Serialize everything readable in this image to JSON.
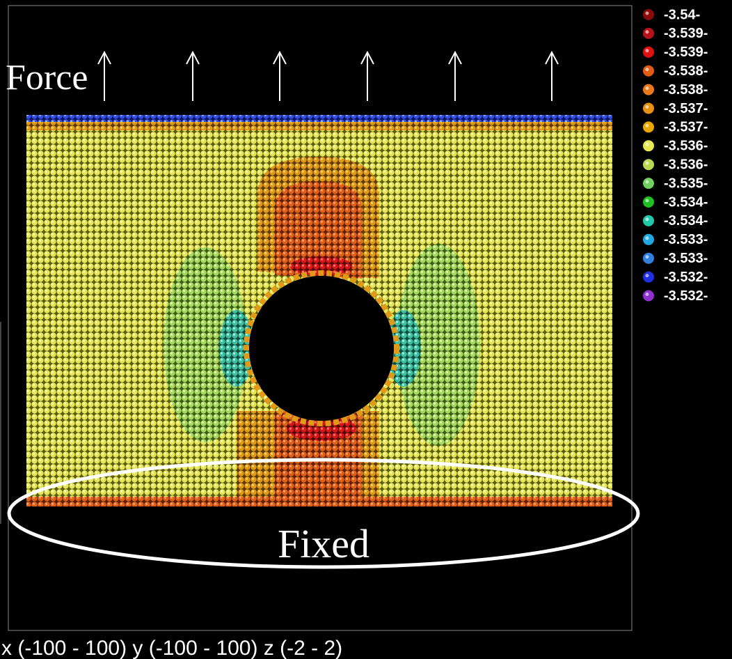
{
  "annotations": {
    "force": "Force",
    "fixed": "Fixed"
  },
  "legend": [
    {
      "label": "-3.54-",
      "color": "#8b0a0a"
    },
    {
      "label": "-3.539-",
      "color": "#b8101a"
    },
    {
      "label": "-3.539-",
      "color": "#e01010"
    },
    {
      "label": "-3.538-",
      "color": "#e05a14"
    },
    {
      "label": "-3.538-",
      "color": "#e87818"
    },
    {
      "label": "-3.537-",
      "color": "#e89010"
    },
    {
      "label": "-3.537-",
      "color": "#e8a800"
    },
    {
      "label": "-3.536-",
      "color": "#e8e850"
    },
    {
      "label": "-3.536-",
      "color": "#b8d850"
    },
    {
      "label": "-3.535-",
      "color": "#70d060"
    },
    {
      "label": "-3.534-",
      "color": "#20c020"
    },
    {
      "label": "-3.534-",
      "color": "#20c8a8"
    },
    {
      "label": "-3.533-",
      "color": "#20a8e0"
    },
    {
      "label": "-3.533-",
      "color": "#3080e0"
    },
    {
      "label": "-3.532-",
      "color": "#2030e0"
    },
    {
      "label": "-3.532-",
      "color": "#9030d0"
    }
  ],
  "footer": "x (-100 - 100) y (-100 - 100) z (-2 - 2)"
}
